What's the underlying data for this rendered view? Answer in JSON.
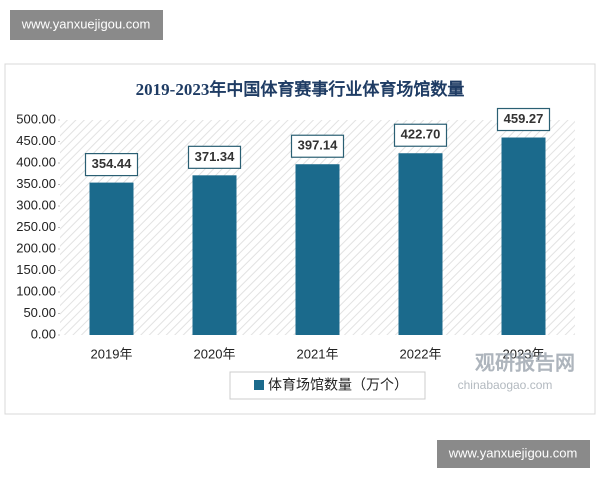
{
  "header": {
    "site": "www.yanxuejigou.com"
  },
  "footer": {
    "site": "www.yanxuejigou.com"
  },
  "watermark": {
    "name": "观研报告网",
    "url": "chinabaogao.com"
  },
  "chart_data": {
    "type": "bar",
    "title": "2019-2023年中国体育赛事行业体育场馆数量",
    "categories": [
      "2019年",
      "2020年",
      "2021年",
      "2022年",
      "2023年"
    ],
    "series": [
      {
        "name": "体育场馆数量（万个）",
        "color": "#1b6a8c",
        "values": [
          354.44,
          371.34,
          397.14,
          422.7,
          459.27
        ],
        "value_labels": [
          "354.44",
          "371.34",
          "397.14",
          "422.70",
          "459.27"
        ]
      }
    ],
    "ylim": [
      0,
      500
    ],
    "yticks": [
      {
        "value": 0,
        "label": "0.00"
      },
      {
        "value": 50,
        "label": "50.00"
      },
      {
        "value": 100,
        "label": "100.00"
      },
      {
        "value": 150,
        "label": "150.00"
      },
      {
        "value": 200,
        "label": "200.00"
      },
      {
        "value": 250,
        "label": "250.00"
      },
      {
        "value": 300,
        "label": "300.00"
      },
      {
        "value": 350,
        "label": "350.00"
      },
      {
        "value": 400,
        "label": "400.00"
      },
      {
        "value": 450,
        "label": "450.00"
      },
      {
        "value": 500,
        "label": "500.00"
      }
    ],
    "legend": "bottom"
  }
}
